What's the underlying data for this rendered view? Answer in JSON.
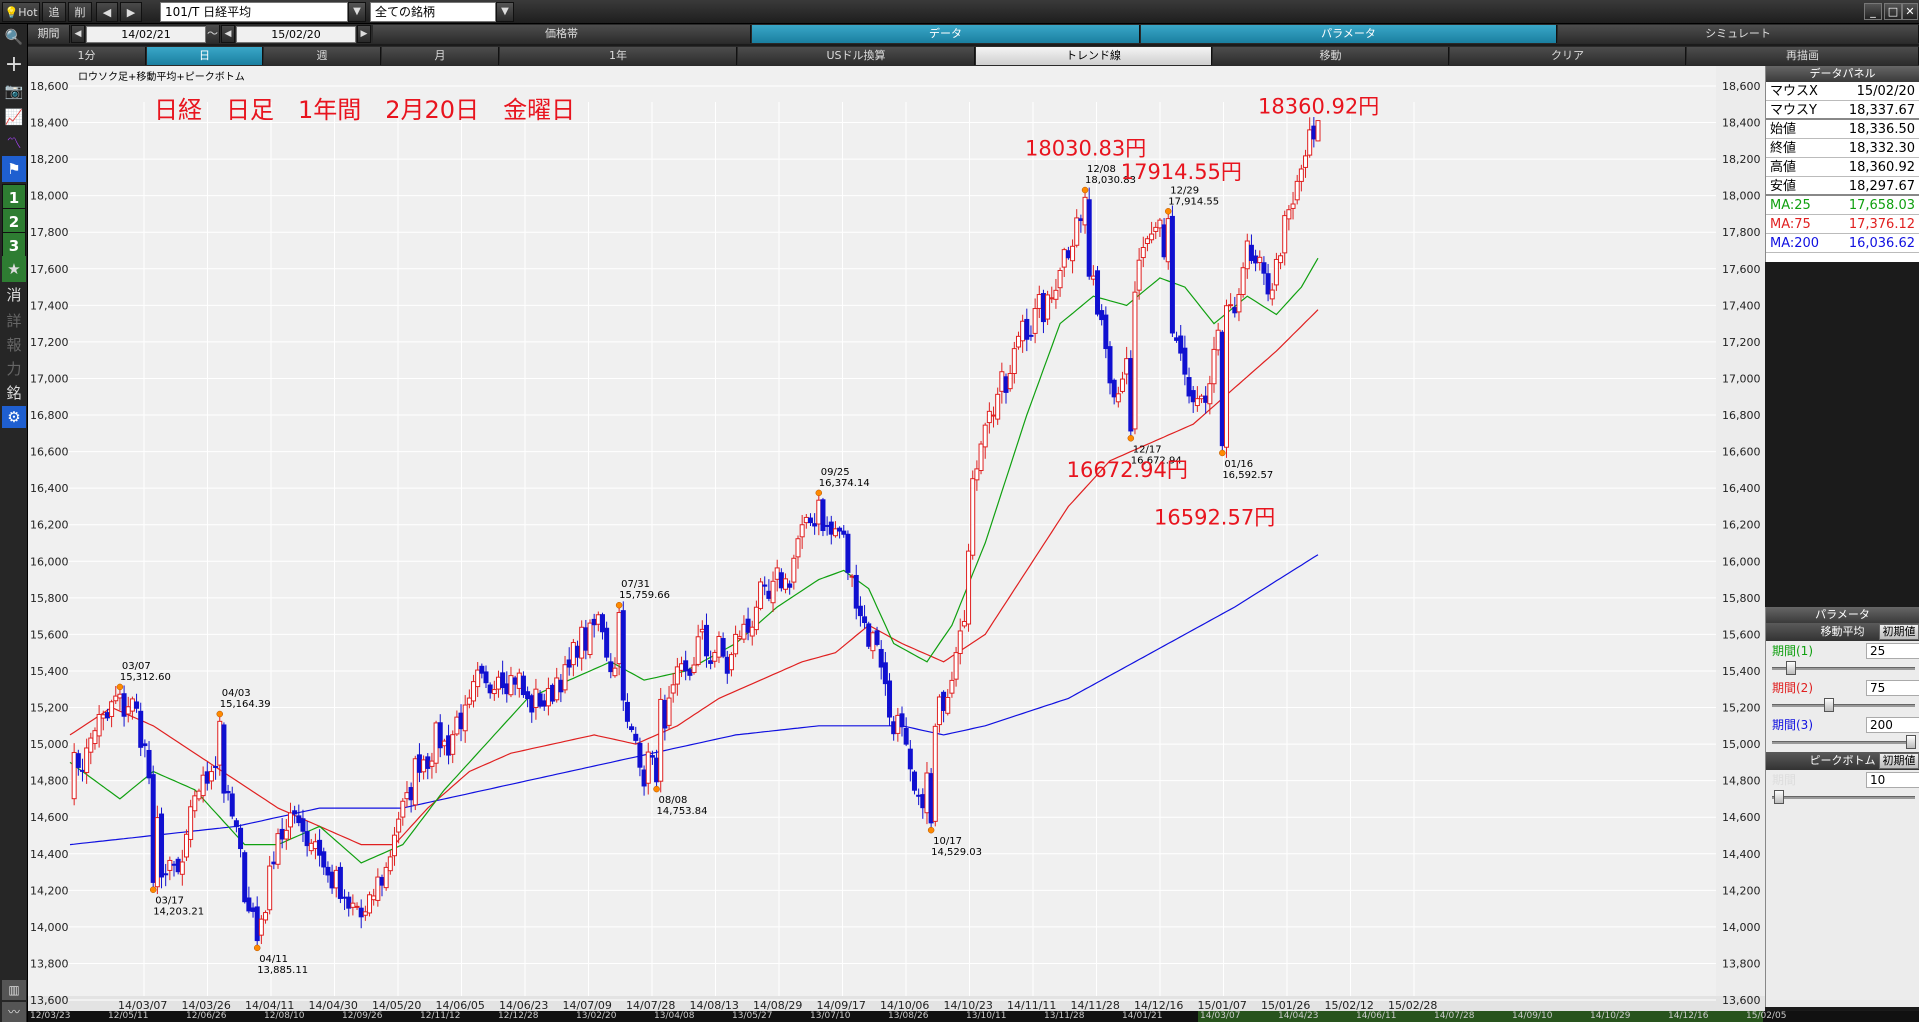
{
  "toolbar": {
    "hot": "Hot",
    "add": "追",
    "del": "削",
    "symbol": "101/T 日経平均",
    "market": "全ての銘柄"
  },
  "row2": {
    "period_label": "期間",
    "from": "14/02/21",
    "tilde": "～",
    "to": "15/02/20",
    "tabs": [
      "価格帯",
      "データ",
      "パラメータ",
      "シミュレート"
    ]
  },
  "row3": {
    "buttons": [
      "1分",
      "日",
      "週",
      "月",
      "1年",
      "USドル換算",
      "トレンド線",
      "移動",
      "クリア",
      "再描画"
    ]
  },
  "left_toolbar": {
    "nums": [
      "1",
      "2",
      "3"
    ],
    "glyphs": [
      "消",
      "詳",
      "報",
      "力",
      "銘"
    ]
  },
  "colors": {
    "ma25": "#10a010",
    "ma75": "#e02020",
    "ma200": "#1010e0",
    "up_candle": "#e02020",
    "down_candle": "#1010d0",
    "chart_bg": "#f0f0f0",
    "accent": "#1a9ac0"
  },
  "data_panel": {
    "title": "データパネル",
    "rows": [
      {
        "label": "マウスX",
        "value": "15/02/20"
      },
      {
        "label": "マウスY",
        "value": "18,337.67"
      },
      {
        "label": "始値",
        "value": "18,336.50"
      },
      {
        "label": "終値",
        "value": "18,332.30"
      },
      {
        "label": "高値",
        "value": "18,360.92"
      },
      {
        "label": "安値",
        "value": "18,297.67"
      },
      {
        "label": "MA:25",
        "value": "17,658.03"
      },
      {
        "label": "MA:75",
        "value": "17,376.12"
      },
      {
        "label": "MA:200",
        "value": "16,036.62"
      }
    ]
  },
  "param_panel": {
    "title": "パラメータ",
    "ma_title": "移動平均",
    "init": "初期値",
    "p1": "期間(1)",
    "p1v": "25",
    "p2": "期間(2)",
    "p2v": "75",
    "p3": "期間(3)",
    "p3v": "200",
    "pb_title": "ピークボトム",
    "pb_period": "期間",
    "pb_value": "10"
  },
  "chart_data": {
    "type": "candlestick",
    "legend": "ロウソク足+移動平均+ピークボトム",
    "title": "日経　日足　1年間　2月20日　金曜日",
    "ylim": [
      13600,
      18600
    ],
    "y_ticks": [
      13600,
      13800,
      14000,
      14200,
      14400,
      14600,
      14800,
      15000,
      15200,
      15400,
      15600,
      15800,
      16000,
      16200,
      16400,
      16600,
      16800,
      17000,
      17200,
      17400,
      17600,
      17800,
      18000,
      18200,
      18400,
      18600
    ],
    "y_tick_labels": [
      "13,600",
      "13,800",
      "14,000",
      "14,200",
      "14,400",
      "14,600",
      "14,800",
      "15,000",
      "15,200",
      "15,400",
      "15,600",
      "15,800",
      "16,000",
      "16,200",
      "16,400",
      "16,600",
      "16,800",
      "17,000",
      "17,200",
      "17,400",
      "17,600",
      "17,800",
      "18,000",
      "18,200",
      "18,400",
      "18,600"
    ],
    "x_labels": [
      "14/03/07",
      "14/03/26",
      "14/04/11",
      "14/04/30",
      "14/05/20",
      "14/06/05",
      "14/06/23",
      "14/07/09",
      "14/07/28",
      "14/08/13",
      "14/08/29",
      "14/09/17",
      "14/10/06",
      "14/10/23",
      "14/11/11",
      "14/11/28",
      "14/12/16",
      "15/01/07",
      "15/01/26",
      "15/02/12",
      "15/02/28"
    ],
    "anchors": [
      [
        0,
        14800
      ],
      [
        8,
        15150
      ],
      [
        14,
        15250
      ],
      [
        18,
        15000
      ],
      [
        22,
        14350
      ],
      [
        26,
        14250
      ],
      [
        30,
        14700
      ],
      [
        34,
        14900
      ],
      [
        37,
        14800
      ],
      [
        42,
        14250
      ],
      [
        45,
        13950
      ],
      [
        50,
        14500
      ],
      [
        55,
        14600
      ],
      [
        60,
        14400
      ],
      [
        65,
        14150
      ],
      [
        70,
        14050
      ],
      [
        74,
        14200
      ],
      [
        80,
        14650
      ],
      [
        85,
        14950
      ],
      [
        92,
        15050
      ],
      [
        98,
        15300
      ],
      [
        105,
        15400
      ],
      [
        112,
        15200
      ],
      [
        118,
        15350
      ],
      [
        124,
        15600
      ],
      [
        128,
        15650
      ],
      [
        133,
        15200
      ],
      [
        138,
        14850
      ],
      [
        142,
        15150
      ],
      [
        146,
        15300
      ],
      [
        152,
        15550
      ],
      [
        158,
        15450
      ],
      [
        165,
        15750
      ],
      [
        172,
        15900
      ],
      [
        178,
        16250
      ],
      [
        182,
        16200
      ],
      [
        186,
        16100
      ],
      [
        190,
        15700
      ],
      [
        194,
        15550
      ],
      [
        197,
        15200
      ],
      [
        201,
        14950
      ],
      [
        204,
        14600
      ],
      [
        208,
        15050
      ],
      [
        212,
        15450
      ],
      [
        215,
        15750
      ],
      [
        217,
        16400
      ],
      [
        220,
        16800
      ],
      [
        225,
        16950
      ],
      [
        229,
        17300
      ],
      [
        234,
        17350
      ],
      [
        238,
        17600
      ],
      [
        242,
        17900
      ],
      [
        244,
        17700
      ],
      [
        248,
        17300
      ],
      [
        252,
        16900
      ],
      [
        255,
        17300
      ],
      [
        258,
        17700
      ],
      [
        262,
        17800
      ],
      [
        265,
        17300
      ],
      [
        269,
        16900
      ],
      [
        273,
        16800
      ],
      [
        276,
        17250
      ],
      [
        280,
        17400
      ],
      [
        283,
        17700
      ],
      [
        287,
        17500
      ],
      [
        290,
        17600
      ],
      [
        293,
        17900
      ],
      [
        296,
        18100
      ],
      [
        298,
        18330
      ]
    ],
    "ma25_anchors": [
      [
        0,
        14900
      ],
      [
        12,
        14700
      ],
      [
        20,
        14850
      ],
      [
        30,
        14750
      ],
      [
        42,
        14450
      ],
      [
        50,
        14450
      ],
      [
        60,
        14550
      ],
      [
        70,
        14350
      ],
      [
        80,
        14450
      ],
      [
        90,
        14750
      ],
      [
        100,
        15000
      ],
      [
        110,
        15250
      ],
      [
        120,
        15350
      ],
      [
        130,
        15450
      ],
      [
        138,
        15350
      ],
      [
        148,
        15400
      ],
      [
        160,
        15550
      ],
      [
        170,
        15750
      ],
      [
        180,
        15900
      ],
      [
        186,
        15950
      ],
      [
        192,
        15850
      ],
      [
        198,
        15550
      ],
      [
        206,
        15450
      ],
      [
        212,
        15650
      ],
      [
        220,
        16100
      ],
      [
        230,
        16800
      ],
      [
        238,
        17300
      ],
      [
        246,
        17450
      ],
      [
        254,
        17400
      ],
      [
        262,
        17550
      ],
      [
        268,
        17500
      ],
      [
        275,
        17300
      ],
      [
        283,
        17450
      ],
      [
        290,
        17350
      ],
      [
        296,
        17500
      ],
      [
        300,
        17658
      ]
    ],
    "ma75_anchors": [
      [
        0,
        15050
      ],
      [
        10,
        15200
      ],
      [
        20,
        15100
      ],
      [
        30,
        14950
      ],
      [
        40,
        14800
      ],
      [
        50,
        14650
      ],
      [
        60,
        14550
      ],
      [
        70,
        14450
      ],
      [
        78,
        14450
      ],
      [
        86,
        14650
      ],
      [
        96,
        14850
      ],
      [
        106,
        14950
      ],
      [
        116,
        15000
      ],
      [
        126,
        15050
      ],
      [
        136,
        15000
      ],
      [
        146,
        15100
      ],
      [
        156,
        15250
      ],
      [
        166,
        15350
      ],
      [
        176,
        15450
      ],
      [
        184,
        15500
      ],
      [
        192,
        15650
      ],
      [
        200,
        15550
      ],
      [
        210,
        15450
      ],
      [
        220,
        15600
      ],
      [
        230,
        15950
      ],
      [
        240,
        16300
      ],
      [
        250,
        16550
      ],
      [
        260,
        16650
      ],
      [
        270,
        16750
      ],
      [
        280,
        16950
      ],
      [
        290,
        17150
      ],
      [
        300,
        17376
      ]
    ],
    "ma200_anchors": [
      [
        0,
        14450
      ],
      [
        20,
        14500
      ],
      [
        40,
        14550
      ],
      [
        60,
        14650
      ],
      [
        80,
        14650
      ],
      [
        100,
        14750
      ],
      [
        120,
        14850
      ],
      [
        140,
        14950
      ],
      [
        160,
        15050
      ],
      [
        180,
        15100
      ],
      [
        200,
        15100
      ],
      [
        210,
        15050
      ],
      [
        220,
        15100
      ],
      [
        240,
        15250
      ],
      [
        260,
        15500
      ],
      [
        280,
        15750
      ],
      [
        300,
        16036
      ]
    ],
    "peaks": [
      {
        "i": 12,
        "v": 15312.6,
        "date": "03/07",
        "label": "15,312.60",
        "pos": "top"
      },
      {
        "i": 20,
        "v": 14203.21,
        "date": "03/17",
        "label": "14,203.21",
        "pos": "bottom"
      },
      {
        "i": 36,
        "v": 15164.39,
        "date": "04/03",
        "label": "15,164.39",
        "pos": "top"
      },
      {
        "i": 45,
        "v": 13885.11,
        "date": "04/11",
        "label": "13,885.11",
        "pos": "bottom"
      },
      {
        "i": 132,
        "v": 15759.66,
        "date": "07/31",
        "label": "15,759.66",
        "pos": "top"
      },
      {
        "i": 141,
        "v": 14753.84,
        "date": "08/08",
        "label": "14,753.84",
        "pos": "bottom"
      },
      {
        "i": 180,
        "v": 16374.14,
        "date": "09/25",
        "label": "16,374.14",
        "pos": "top"
      },
      {
        "i": 207,
        "v": 14529.03,
        "date": "10/17",
        "label": "14,529.03",
        "pos": "bottom"
      },
      {
        "i": 244,
        "v": 18030.83,
        "date": "12/08",
        "label": "18,030.83",
        "pos": "top"
      },
      {
        "i": 255,
        "v": 16672.94,
        "date": "12/17",
        "label": "16,672.94",
        "pos": "bottom"
      },
      {
        "i": 264,
        "v": 17914.55,
        "date": "12/29",
        "label": "17,914.55",
        "pos": "top"
      },
      {
        "i": 277,
        "v": 16592.57,
        "date": "01/16",
        "label": "16,592.57",
        "pos": "bottom"
      }
    ],
    "big_labels": [
      {
        "text": "18030.83円",
        "i": 244,
        "v": 18220
      },
      {
        "text": "17914.55円",
        "i": 267,
        "v": 18090
      },
      {
        "text": "18360.92円",
        "i": 300,
        "v": 18450
      },
      {
        "text": "16672.94円",
        "i": 254,
        "v": 16460
      },
      {
        "text": "16592.57円",
        "i": 275,
        "v": 16200
      }
    ],
    "last_index": 300
  },
  "bottom_nav": {
    "dates": [
      "12/03/23",
      "12/05/11",
      "12/06/26",
      "12/08/10",
      "12/09/26",
      "12/11/12",
      "12/12/28",
      "13/02/20",
      "13/04/08",
      "13/05/27",
      "13/07/10",
      "13/08/26",
      "13/10/11",
      "13/11/28",
      "14/01/21",
      "14/03/07",
      "14/04/23",
      "14/06/11",
      "14/07/28",
      "14/09/10",
      "14/10/29",
      "14/12/16",
      "15/02/05"
    ]
  }
}
